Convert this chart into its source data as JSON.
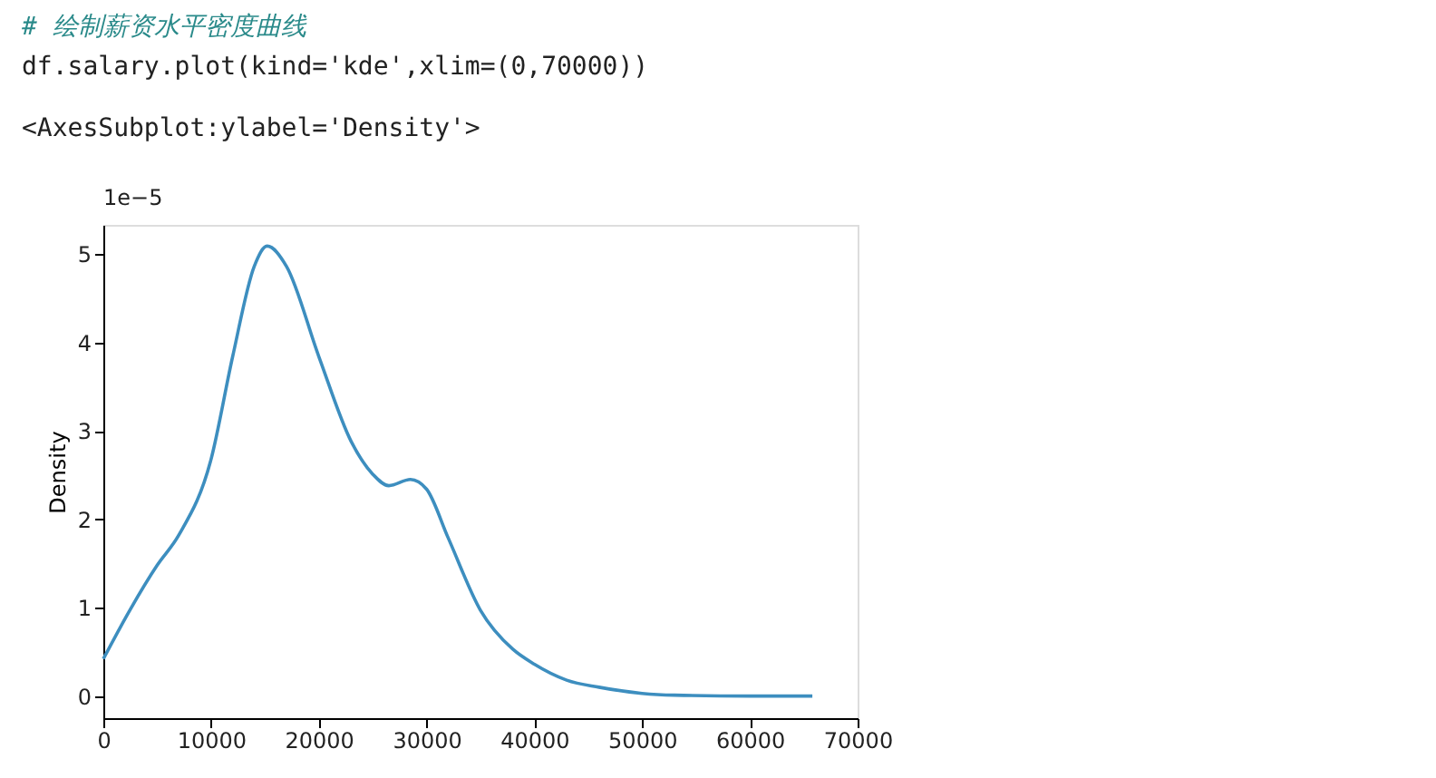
{
  "chart_data": {
    "type": "line",
    "ylabel": "Density",
    "annotations": [
      "# 绘制薪资水平密度曲线",
      "df.salary.plot(kind='kde',xlim=(0,70000))",
      "<AxesSubplot:ylabel='Density'>",
      "1e−5"
    ],
    "x": [
      0,
      2500,
      5000,
      7000,
      10000,
      12000,
      14000,
      15200,
      17000,
      20000,
      23000,
      25000,
      26500,
      28500,
      30000,
      32000,
      35000,
      38000,
      40000,
      43000,
      46000,
      50000,
      53000,
      60000,
      65800
    ],
    "series": [
      {
        "color": "#3d8ebf",
        "values": [
          0.42,
          0.98,
          1.48,
          1.82,
          2.68,
          3.84,
          4.86,
          5.09,
          4.86,
          3.84,
          2.88,
          2.51,
          2.38,
          2.45,
          2.34,
          1.79,
          0.97,
          0.53,
          0.36,
          0.18,
          0.1,
          0.03,
          0.01,
          0,
          0
        ]
      }
    ],
    "xlim": [
      0,
      70000
    ],
    "ylim": [
      -0.25,
      5.33
    ],
    "xticks": [
      0,
      10000,
      20000,
      30000,
      40000,
      50000,
      60000,
      70000
    ],
    "yticks": [
      0,
      1,
      2,
      3,
      4,
      5
    ],
    "grid": false,
    "marker": "none",
    "line_style": "solid"
  }
}
